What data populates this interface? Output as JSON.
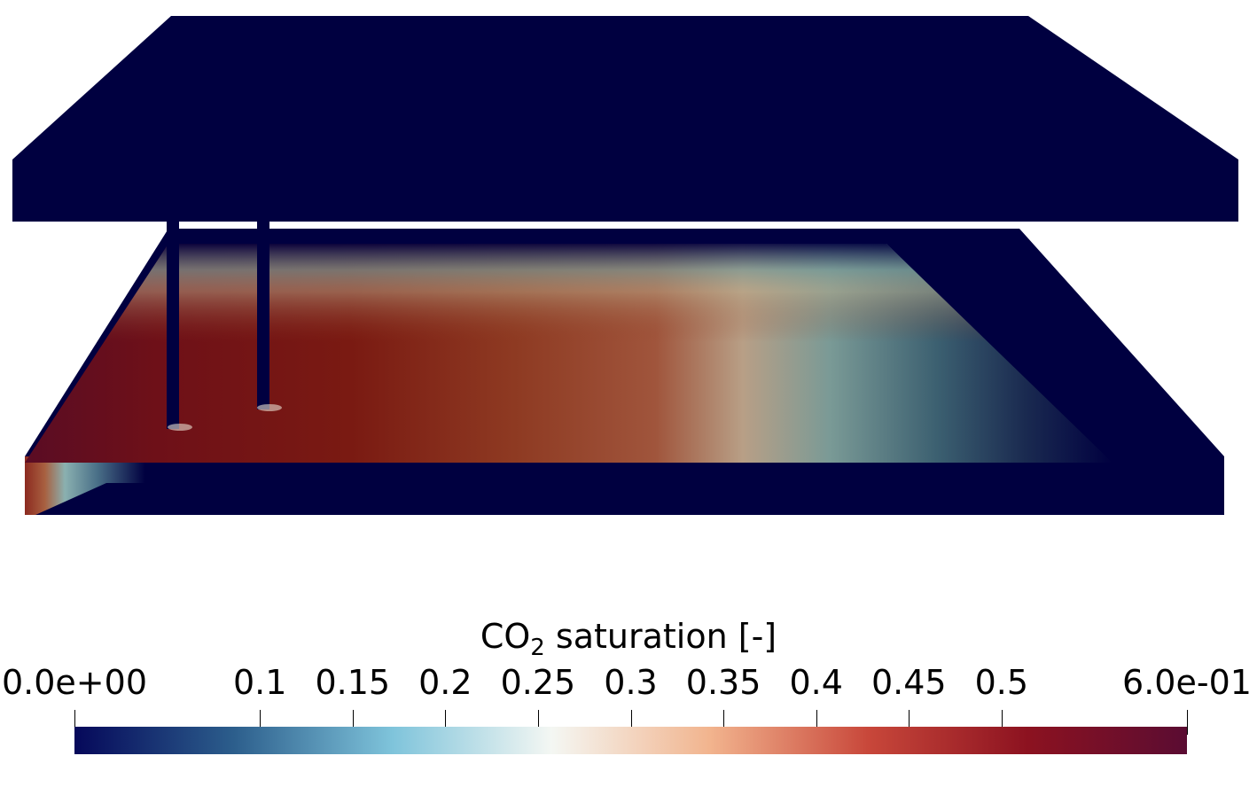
{
  "legend": {
    "title_prefix": "CO",
    "title_subscript": "2",
    "title_suffix": " saturation [-]",
    "min": 0.0,
    "max": 0.6,
    "ticks": [
      {
        "value": 0.0,
        "label": "0.0e+00"
      },
      {
        "value": 0.1,
        "label": "0.1"
      },
      {
        "value": 0.15,
        "label": "0.15"
      },
      {
        "value": 0.2,
        "label": "0.2"
      },
      {
        "value": 0.25,
        "label": "0.25"
      },
      {
        "value": 0.3,
        "label": "0.3"
      },
      {
        "value": 0.35,
        "label": "0.35"
      },
      {
        "value": 0.4,
        "label": "0.4"
      },
      {
        "value": 0.45,
        "label": "0.45"
      },
      {
        "value": 0.5,
        "label": "0.5"
      },
      {
        "value": 0.6,
        "label": "6.0e-01"
      }
    ],
    "colormap": [
      "#05085a",
      "#2c5e8c",
      "#7fc4db",
      "#f4f7f3",
      "#f2b48e",
      "#c8473a",
      "#8c1220",
      "#5a0c32"
    ]
  },
  "colors": {
    "caprock": "#000040",
    "background": "#ffffff"
  }
}
